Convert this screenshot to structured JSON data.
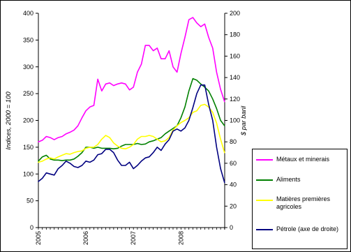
{
  "chart_data": {
    "type": "line",
    "ylabel_left": "Indices, 2000 = 100",
    "ylabel_right": "$ par baril",
    "y_left_range": [
      0,
      400
    ],
    "y_left_ticks": [
      "0",
      "50",
      "100",
      "150",
      "200",
      "250",
      "300",
      "350",
      "400"
    ],
    "y_right_range": [
      0,
      200
    ],
    "y_right_ticks": [
      "0",
      "20",
      "40",
      "60",
      "80",
      "100",
      "120",
      "140",
      "160",
      "180",
      "200"
    ],
    "x_range": [
      2005.0,
      2008.92
    ],
    "x_ticks": [
      "2005",
      "2006",
      "2007",
      "2008"
    ],
    "grid": "none",
    "legend_position": "right",
    "series": [
      {
        "name": "Métaux et minerais",
        "axis": "left",
        "color": "#ff00ff",
        "x": [
          2005.0,
          2005.083,
          2005.167,
          2005.25,
          2005.333,
          2005.417,
          2005.5,
          2005.583,
          2005.667,
          2005.75,
          2005.833,
          2005.917,
          2006.0,
          2006.083,
          2006.167,
          2006.25,
          2006.333,
          2006.417,
          2006.5,
          2006.583,
          2006.667,
          2006.75,
          2006.833,
          2006.917,
          2007.0,
          2007.083,
          2007.167,
          2007.25,
          2007.333,
          2007.417,
          2007.5,
          2007.583,
          2007.667,
          2007.75,
          2007.833,
          2007.917,
          2008.0,
          2008.083,
          2008.167,
          2008.25,
          2008.333,
          2008.417,
          2008.5,
          2008.583,
          2008.667,
          2008.75,
          2008.833,
          2008.917
        ],
        "y": [
          160,
          163,
          170,
          168,
          164,
          168,
          170,
          175,
          178,
          182,
          190,
          205,
          218,
          225,
          228,
          277,
          255,
          268,
          270,
          265,
          268,
          270,
          268,
          257,
          262,
          290,
          305,
          340,
          340,
          330,
          335,
          315,
          315,
          330,
          300,
          290,
          325,
          355,
          388,
          392,
          382,
          375,
          380,
          355,
          335,
          290,
          258,
          235
        ]
      },
      {
        "name": "Aliments",
        "axis": "left",
        "color": "#008000",
        "x": [
          2005.0,
          2005.083,
          2005.167,
          2005.25,
          2005.333,
          2005.417,
          2005.5,
          2005.583,
          2005.667,
          2005.75,
          2005.833,
          2005.917,
          2006.0,
          2006.083,
          2006.167,
          2006.25,
          2006.333,
          2006.417,
          2006.5,
          2006.583,
          2006.667,
          2006.75,
          2006.833,
          2006.917,
          2007.0,
          2007.083,
          2007.167,
          2007.25,
          2007.333,
          2007.417,
          2007.5,
          2007.583,
          2007.667,
          2007.75,
          2007.833,
          2007.917,
          2008.0,
          2008.083,
          2008.167,
          2008.25,
          2008.333,
          2008.417,
          2008.5,
          2008.583,
          2008.667,
          2008.75,
          2008.833,
          2008.917
        ],
        "y": [
          124,
          132,
          135,
          128,
          126,
          126,
          125,
          126,
          126,
          128,
          133,
          140,
          150,
          150,
          148,
          150,
          148,
          148,
          148,
          147,
          148,
          152,
          155,
          155,
          155,
          157,
          155,
          156,
          160,
          162,
          165,
          168,
          175,
          180,
          185,
          190,
          205,
          225,
          255,
          278,
          275,
          268,
          262,
          255,
          240,
          222,
          200,
          190
        ]
      },
      {
        "name": "Matières premières agricoles",
        "axis": "left",
        "color": "#ffff00",
        "x": [
          2005.0,
          2005.083,
          2005.167,
          2005.25,
          2005.333,
          2005.417,
          2005.5,
          2005.583,
          2005.667,
          2005.75,
          2005.833,
          2005.917,
          2006.0,
          2006.083,
          2006.167,
          2006.25,
          2006.333,
          2006.417,
          2006.5,
          2006.583,
          2006.667,
          2006.75,
          2006.833,
          2006.917,
          2007.0,
          2007.083,
          2007.167,
          2007.25,
          2007.333,
          2007.417,
          2007.5,
          2007.583,
          2007.667,
          2007.75,
          2007.833,
          2007.917,
          2008.0,
          2008.083,
          2008.167,
          2008.25,
          2008.333,
          2008.417,
          2008.5,
          2008.583,
          2008.667,
          2008.75,
          2008.833,
          2008.917
        ],
        "y": [
          122,
          124,
          128,
          130,
          128,
          132,
          135,
          138,
          137,
          140,
          142,
          143,
          148,
          150,
          150,
          155,
          165,
          172,
          168,
          158,
          152,
          148,
          147,
          150,
          155,
          165,
          170,
          170,
          172,
          170,
          165,
          160,
          162,
          168,
          182,
          190,
          196,
          200,
          205,
          215,
          218,
          228,
          230,
          225,
          215,
          195,
          165,
          140
        ]
      },
      {
        "name": "Pétrole (axe de droite)",
        "axis": "right",
        "color": "#000080",
        "x": [
          2005.0,
          2005.083,
          2005.167,
          2005.25,
          2005.333,
          2005.417,
          2005.5,
          2005.583,
          2005.667,
          2005.75,
          2005.833,
          2005.917,
          2006.0,
          2006.083,
          2006.167,
          2006.25,
          2006.333,
          2006.417,
          2006.5,
          2006.583,
          2006.667,
          2006.75,
          2006.833,
          2006.917,
          2007.0,
          2007.083,
          2007.167,
          2007.25,
          2007.333,
          2007.417,
          2007.5,
          2007.583,
          2007.667,
          2007.75,
          2007.833,
          2007.917,
          2008.0,
          2008.083,
          2008.167,
          2008.25,
          2008.333,
          2008.417,
          2008.5,
          2008.583,
          2008.667,
          2008.75,
          2008.833,
          2008.917
        ],
        "y": [
          43,
          46,
          51,
          50,
          49,
          55,
          58,
          62,
          60,
          57,
          56,
          58,
          62,
          61,
          63,
          68,
          69,
          73,
          73,
          70,
          63,
          58,
          58,
          61,
          55,
          58,
          62,
          65,
          66,
          70,
          75,
          72,
          78,
          82,
          90,
          92,
          90,
          93,
          100,
          112,
          125,
          133,
          133,
          115,
          100,
          75,
          55,
          42
        ]
      }
    ]
  }
}
